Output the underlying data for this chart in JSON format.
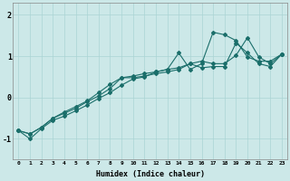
{
  "bg_color": "#cce8e8",
  "line_color": "#1a6e6a",
  "grid_color": "#aad4d4",
  "xlabel": "Humidex (Indice chaleur)",
  "xlim": [
    -0.5,
    23.5
  ],
  "ylim": [
    -1.5,
    2.3
  ],
  "yticks": [
    -1,
    0,
    1,
    2
  ],
  "xticks": [
    0,
    1,
    2,
    3,
    4,
    5,
    6,
    7,
    8,
    9,
    10,
    11,
    12,
    13,
    14,
    15,
    16,
    17,
    18,
    19,
    20,
    21,
    22,
    23
  ],
  "x": [
    0,
    1,
    2,
    3,
    4,
    5,
    6,
    7,
    8,
    9,
    10,
    11,
    12,
    13,
    14,
    15,
    16,
    17,
    18,
    19,
    20,
    21,
    22,
    23
  ],
  "series": [
    [
      -0.8,
      -1.0,
      -0.75,
      -0.55,
      -0.45,
      -0.32,
      -0.18,
      -0.02,
      0.12,
      0.3,
      0.45,
      0.5,
      0.62,
      0.68,
      0.72,
      0.82,
      0.88,
      0.82,
      0.82,
      1.02,
      1.45,
      0.98,
      0.82,
      1.05
    ],
    [
      -0.8,
      -0.88,
      -0.72,
      -0.5,
      -0.35,
      -0.22,
      -0.08,
      0.12,
      0.32,
      0.48,
      0.52,
      0.58,
      0.62,
      0.68,
      1.08,
      0.68,
      0.82,
      1.58,
      1.52,
      1.38,
      0.98,
      0.88,
      0.88,
      1.05
    ],
    [
      -0.8,
      -0.88,
      -0.72,
      -0.5,
      -0.38,
      -0.26,
      -0.1,
      0.04,
      0.22,
      0.48,
      0.48,
      0.52,
      0.58,
      0.62,
      0.68,
      0.82,
      0.72,
      0.75,
      0.75,
      1.32,
      1.08,
      0.82,
      0.75,
      1.05
    ]
  ],
  "marker": "D",
  "markersize": 2.0,
  "linewidth": 0.8,
  "title_fontsize": 7,
  "xlabel_fontsize": 6,
  "xtick_fontsize": 4.5,
  "ytick_fontsize": 6
}
